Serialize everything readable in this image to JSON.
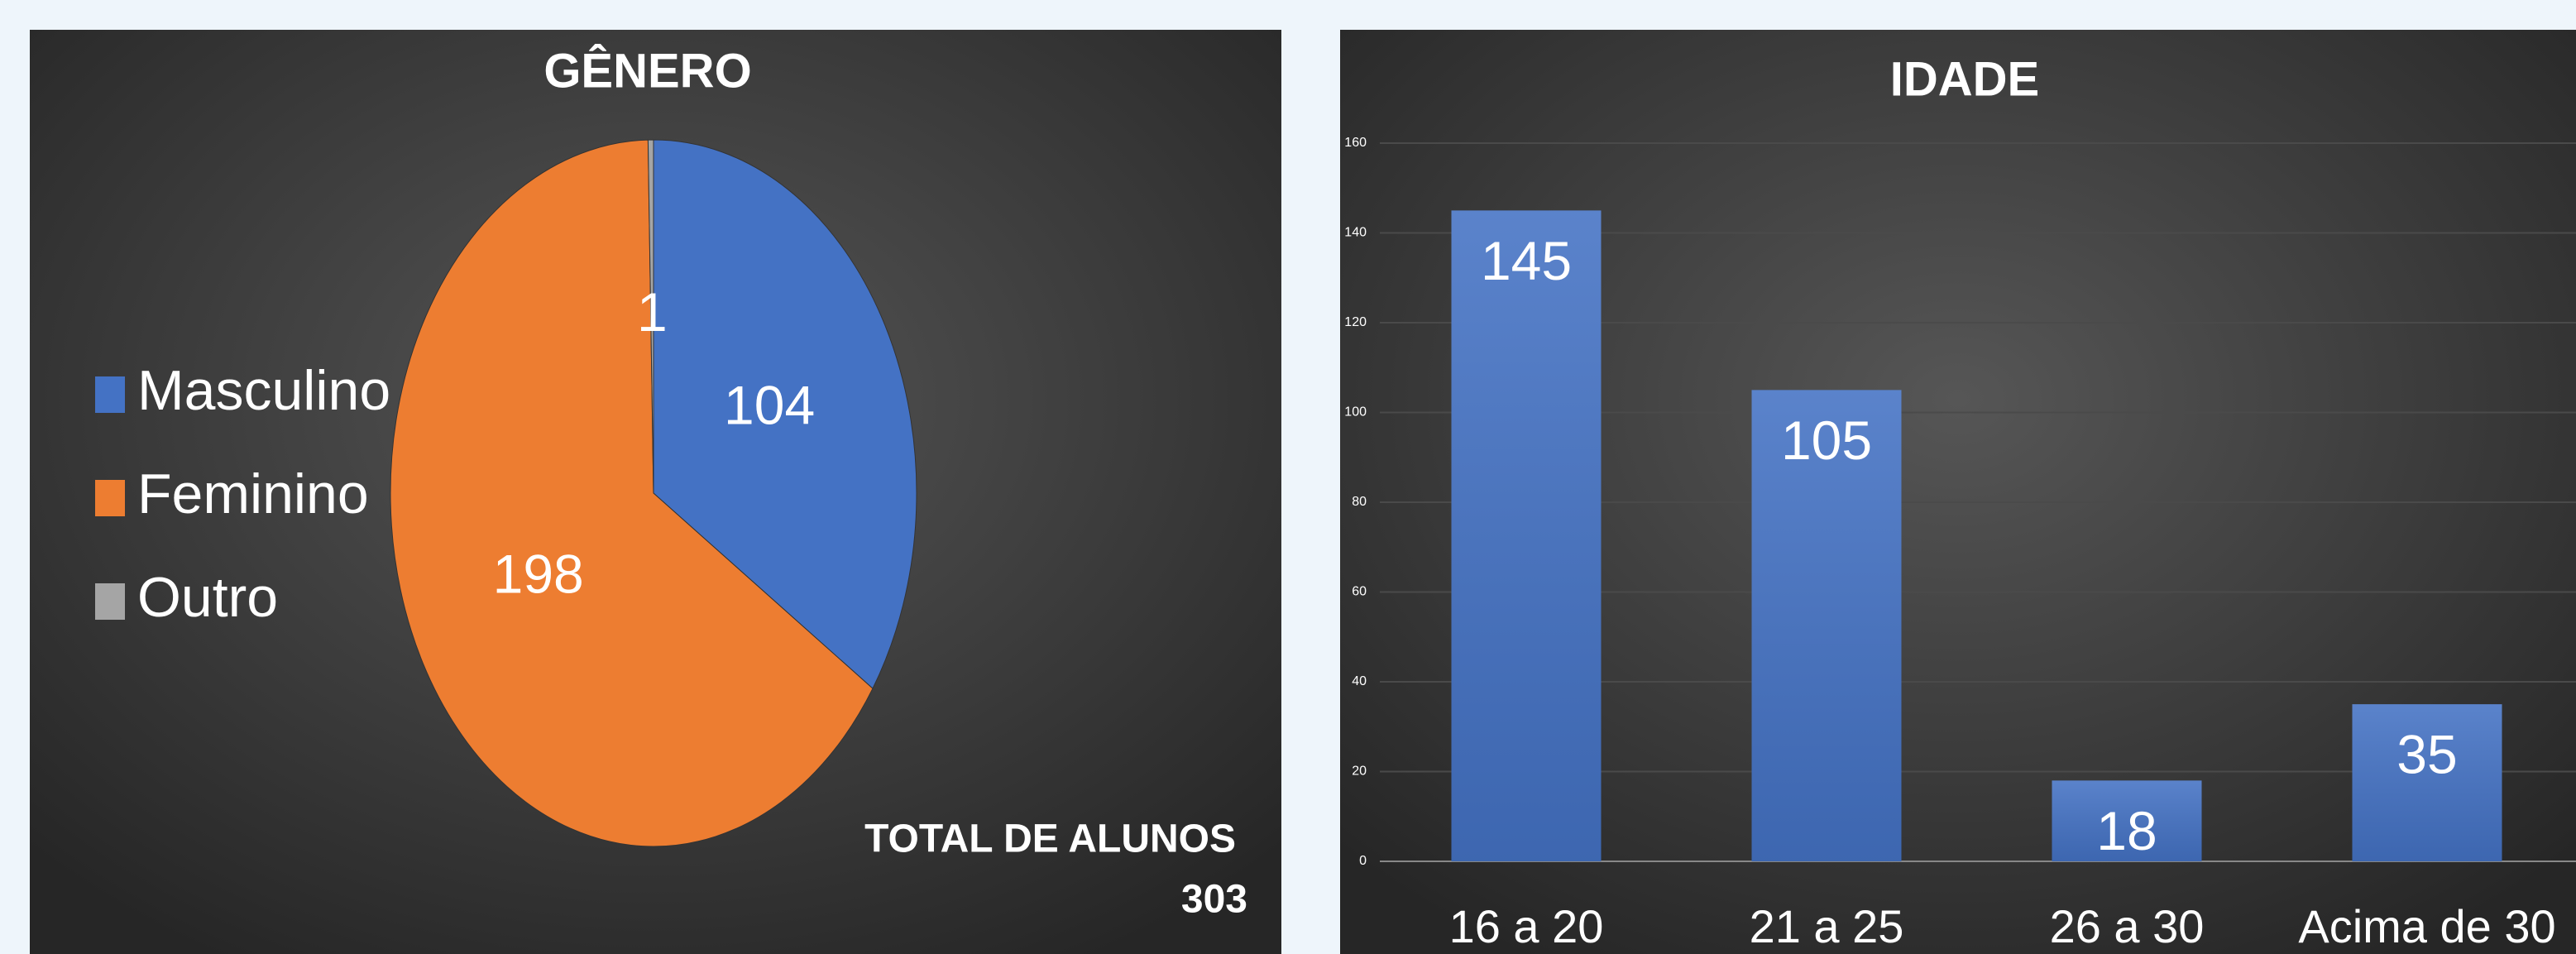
{
  "chart_data": [
    {
      "type": "pie",
      "title": "GÊNERO",
      "categories": [
        "Masculino",
        "Feminino",
        "Outro"
      ],
      "values": [
        104,
        198,
        1
      ],
      "colors": [
        "#4472c4",
        "#ed7d31",
        "#a5a5a5"
      ],
      "legend": "left",
      "total_label": "TOTAL DE ALUNOS",
      "total": 303
    },
    {
      "type": "bar",
      "title": "IDADE",
      "categories": [
        "16 a 20",
        "21 a 25",
        "26 a 30",
        "Acima de 30"
      ],
      "values": [
        145,
        105,
        18,
        35
      ],
      "color": "#4472c4",
      "ylim": [
        0,
        160
      ],
      "yticks": [
        0,
        20,
        40,
        60,
        80,
        100,
        120,
        140,
        160
      ],
      "grid": true
    }
  ]
}
